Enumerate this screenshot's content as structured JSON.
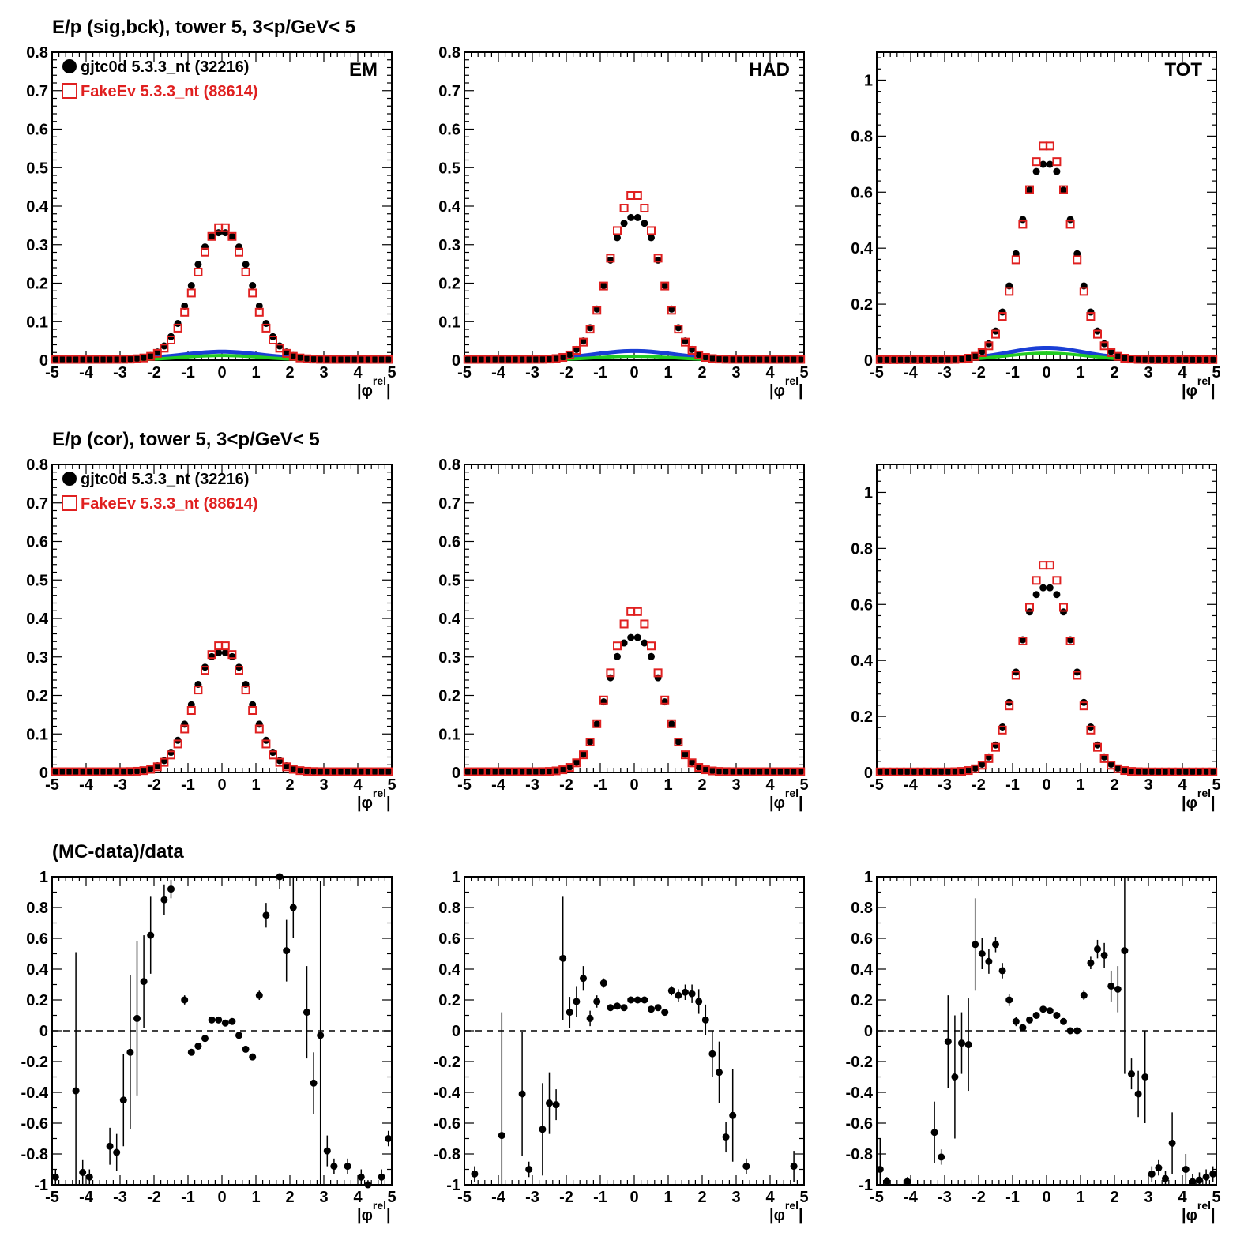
{
  "titles": {
    "row1": "E/p (sig,bck), tower 5,  3<p/GeV< 5",
    "row2": "E/p (cor), tower 5,  3<p/GeV< 5",
    "row3": "(MC-data)/data"
  },
  "legend": {
    "data_label": "gjtc0d 5.3.3_nt (32216)",
    "mc_label": "FakeEv 5.3.3_nt (88614)",
    "data_color": "#000000",
    "mc_color": "#e02020"
  },
  "colors": {
    "bck_blue": "#1a3fd6",
    "bck_green": "#22cc22",
    "zero_line": "#000000"
  },
  "axis": {
    "x_title_main": "|φ",
    "x_title_sup": "rel",
    "x_title_end": "|"
  },
  "chart_data": [
    {
      "type": "scatter",
      "panel": "row1-EM",
      "label": "EM",
      "xlim": [
        -5,
        5
      ],
      "ylim": [
        0,
        0.8
      ],
      "yticks": [
        0,
        0.1,
        0.2,
        0.3,
        0.4,
        0.5,
        0.6,
        0.7,
        0.8
      ],
      "xticks": [
        -5,
        -4,
        -3,
        -2,
        -1,
        0,
        1,
        2,
        3,
        4,
        5
      ],
      "sigma": 0.78,
      "data_peak": 0.33,
      "mc_peak": 0.345,
      "bck_blue": 0.018,
      "bck_green": 0.012
    },
    {
      "type": "scatter",
      "panel": "row1-HAD",
      "label": "HAD",
      "xlim": [
        -5,
        5
      ],
      "ylim": [
        0,
        0.8
      ],
      "yticks": [
        0,
        0.1,
        0.2,
        0.3,
        0.4,
        0.5,
        0.6,
        0.7,
        0.8
      ],
      "xticks": [
        -5,
        -4,
        -3,
        -2,
        -1,
        0,
        1,
        2,
        3,
        4,
        5
      ],
      "sigma": 0.72,
      "data_peak": 0.37,
      "mc_peak": 0.43,
      "bck_blue": 0.02,
      "bck_green": 0.01
    },
    {
      "type": "scatter",
      "panel": "row1-TOT",
      "label": "TOT",
      "xlim": [
        -5,
        5
      ],
      "ylim": [
        0,
        1.1
      ],
      "yticks": [
        0,
        0.2,
        0.4,
        0.6,
        0.8,
        1
      ],
      "xticks": [
        -5,
        -4,
        -3,
        -2,
        -1,
        0,
        1,
        2,
        3,
        4,
        5
      ],
      "sigma": 0.74,
      "data_peak": 0.7,
      "mc_peak": 0.77,
      "bck_blue": 0.04,
      "bck_green": 0.025
    },
    {
      "type": "scatter",
      "panel": "row2-EM",
      "label": "",
      "xlim": [
        -5,
        5
      ],
      "ylim": [
        0,
        0.8
      ],
      "yticks": [
        0,
        0.1,
        0.2,
        0.3,
        0.4,
        0.5,
        0.6,
        0.7,
        0.8
      ],
      "xticks": [
        -5,
        -4,
        -3,
        -2,
        -1,
        0,
        1,
        2,
        3,
        4,
        5
      ],
      "sigma": 0.76,
      "data_peak": 0.31,
      "mc_peak": 0.33
    },
    {
      "type": "scatter",
      "panel": "row2-HAD",
      "label": "",
      "xlim": [
        -5,
        5
      ],
      "ylim": [
        0,
        0.8
      ],
      "yticks": [
        0,
        0.1,
        0.2,
        0.3,
        0.4,
        0.5,
        0.6,
        0.7,
        0.8
      ],
      "xticks": [
        -5,
        -4,
        -3,
        -2,
        -1,
        0,
        1,
        2,
        3,
        4,
        5
      ],
      "sigma": 0.72,
      "data_peak": 0.35,
      "mc_peak": 0.42
    },
    {
      "type": "scatter",
      "panel": "row2-TOT",
      "label": "",
      "xlim": [
        -5,
        5
      ],
      "ylim": [
        0,
        1.1
      ],
      "yticks": [
        0,
        0.2,
        0.4,
        0.6,
        0.8,
        1
      ],
      "xticks": [
        -5,
        -4,
        -3,
        -2,
        -1,
        0,
        1,
        2,
        3,
        4,
        5
      ],
      "sigma": 0.74,
      "data_peak": 0.66,
      "mc_peak": 0.745
    },
    {
      "type": "scatter",
      "panel": "row3-EM",
      "label": "",
      "xlim": [
        -5,
        5
      ],
      "ylim": [
        -1,
        1
      ],
      "yticks": [
        -1,
        -0.8,
        -0.6,
        -0.4,
        -0.2,
        0,
        0.2,
        0.4,
        0.6,
        0.8,
        1
      ],
      "xticks": [
        -5,
        -4,
        -3,
        -2,
        -1,
        0,
        1,
        2,
        3,
        4,
        5
      ],
      "x": [
        -4.9,
        -4.3,
        -4.1,
        -3.9,
        -3.3,
        -3.1,
        -2.9,
        -2.7,
        -2.5,
        -2.3,
        -2.1,
        -1.7,
        -1.5,
        -1.1,
        -0.9,
        -0.7,
        -0.5,
        -0.3,
        -0.1,
        0.1,
        0.3,
        0.5,
        0.7,
        0.9,
        1.1,
        1.3,
        1.7,
        1.9,
        2.1,
        2.5,
        2.7,
        2.9,
        3.1,
        3.3,
        3.7,
        4.1,
        4.3,
        4.7,
        4.9
      ],
      "y": [
        -0.95,
        -0.39,
        -0.92,
        -0.95,
        -0.75,
        -0.79,
        -0.45,
        -0.14,
        0.08,
        0.32,
        0.62,
        0.85,
        0.92,
        0.2,
        -0.14,
        -0.1,
        -0.05,
        0.07,
        0.07,
        0.05,
        0.06,
        -0.03,
        -0.12,
        -0.17,
        0.23,
        0.75,
        1.0,
        0.52,
        0.8,
        0.12,
        -0.34,
        -0.03,
        -0.78,
        -0.88,
        -0.88,
        -0.95,
        -1.0,
        -0.95,
        -0.7
      ],
      "err": [
        0.05,
        0.9,
        0.08,
        0.05,
        0.12,
        0.12,
        0.3,
        0.5,
        0.5,
        0.3,
        0.25,
        0.1,
        0.06,
        0.03,
        0.02,
        0.02,
        0.02,
        0.02,
        0.02,
        0.02,
        0.02,
        0.02,
        0.02,
        0.02,
        0.03,
        0.08,
        0.08,
        0.2,
        0.2,
        0.3,
        0.2,
        1.0,
        0.1,
        0.05,
        0.05,
        0.05,
        0.03,
        0.05,
        0.05
      ]
    },
    {
      "type": "scatter",
      "panel": "row3-HAD",
      "label": "",
      "xlim": [
        -5,
        5
      ],
      "ylim": [
        -1,
        1
      ],
      "yticks": [
        -1,
        -0.8,
        -0.6,
        -0.4,
        -0.2,
        0,
        0.2,
        0.4,
        0.6,
        0.8,
        1
      ],
      "xticks": [
        -5,
        -4,
        -3,
        -2,
        -1,
        0,
        1,
        2,
        3,
        4,
        5
      ],
      "x": [
        -4.7,
        -3.9,
        -3.3,
        -3.1,
        -2.7,
        -2.5,
        -2.3,
        -2.1,
        -1.9,
        -1.7,
        -1.5,
        -1.3,
        -1.1,
        -0.9,
        -0.7,
        -0.5,
        -0.3,
        -0.1,
        0.1,
        0.3,
        0.5,
        0.7,
        0.9,
        1.1,
        1.3,
        1.5,
        1.7,
        1.9,
        2.1,
        2.3,
        2.5,
        2.7,
        2.9,
        3.3,
        4.7
      ],
      "y": [
        -0.93,
        -0.68,
        -0.41,
        -0.9,
        -0.64,
        -0.47,
        -0.48,
        0.47,
        0.12,
        0.19,
        0.34,
        0.08,
        0.19,
        0.31,
        0.15,
        0.16,
        0.15,
        0.2,
        0.2,
        0.2,
        0.14,
        0.15,
        0.12,
        0.26,
        0.23,
        0.25,
        0.24,
        0.19,
        0.07,
        -0.15,
        -0.27,
        -0.69,
        -0.55,
        -0.88,
        -0.88
      ],
      "err": [
        0.05,
        0.8,
        0.4,
        0.05,
        0.3,
        0.2,
        0.1,
        0.4,
        0.1,
        0.1,
        0.08,
        0.05,
        0.04,
        0.03,
        0.02,
        0.02,
        0.02,
        0.02,
        0.02,
        0.02,
        0.02,
        0.02,
        0.02,
        0.03,
        0.04,
        0.05,
        0.06,
        0.08,
        0.1,
        0.15,
        0.2,
        0.1,
        0.3,
        0.05,
        0.1
      ]
    },
    {
      "type": "scatter",
      "panel": "row3-TOT",
      "label": "",
      "xlim": [
        -5,
        5
      ],
      "ylim": [
        -1,
        1
      ],
      "yticks": [
        -1,
        -0.8,
        -0.6,
        -0.4,
        -0.2,
        0,
        0.2,
        0.4,
        0.6,
        0.8,
        1
      ],
      "xticks": [
        -5,
        -4,
        -3,
        -2,
        -1,
        0,
        1,
        2,
        3,
        4,
        5
      ],
      "x": [
        -4.9,
        -4.7,
        -4.1,
        -3.3,
        -3.1,
        -2.9,
        -2.7,
        -2.5,
        -2.3,
        -2.1,
        -1.9,
        -1.7,
        -1.5,
        -1.3,
        -1.1,
        -0.9,
        -0.7,
        -0.5,
        -0.3,
        -0.1,
        0.1,
        0.3,
        0.5,
        0.7,
        0.9,
        1.1,
        1.3,
        1.5,
        1.7,
        1.9,
        2.1,
        2.3,
        2.5,
        2.7,
        2.9,
        3.1,
        3.3,
        3.5,
        3.7,
        4.1,
        4.3,
        4.5,
        4.7,
        4.9
      ],
      "y": [
        -0.9,
        -0.98,
        -0.98,
        -0.66,
        -0.82,
        -0.07,
        -0.3,
        -0.08,
        -0.09,
        0.56,
        0.5,
        0.45,
        0.56,
        0.39,
        0.2,
        0.06,
        0.02,
        0.07,
        0.1,
        0.14,
        0.13,
        0.1,
        0.06,
        0.0,
        0.0,
        0.23,
        0.44,
        0.53,
        0.49,
        0.29,
        0.27,
        0.52,
        -0.28,
        -0.41,
        -0.3,
        -0.93,
        -0.89,
        -0.96,
        -0.73,
        -0.9,
        -0.98,
        -0.97,
        -0.95,
        -0.93
      ],
      "err": [
        0.2,
        0.03,
        0.03,
        0.2,
        0.05,
        0.3,
        0.4,
        0.2,
        0.3,
        0.3,
        0.1,
        0.08,
        0.05,
        0.05,
        0.04,
        0.03,
        0.02,
        0.02,
        0.02,
        0.02,
        0.02,
        0.02,
        0.02,
        0.02,
        0.02,
        0.03,
        0.04,
        0.06,
        0.08,
        0.1,
        0.15,
        0.8,
        0.1,
        0.15,
        0.3,
        0.05,
        0.05,
        0.05,
        0.2,
        0.1,
        0.05,
        0.05,
        0.05,
        0.05
      ]
    }
  ]
}
